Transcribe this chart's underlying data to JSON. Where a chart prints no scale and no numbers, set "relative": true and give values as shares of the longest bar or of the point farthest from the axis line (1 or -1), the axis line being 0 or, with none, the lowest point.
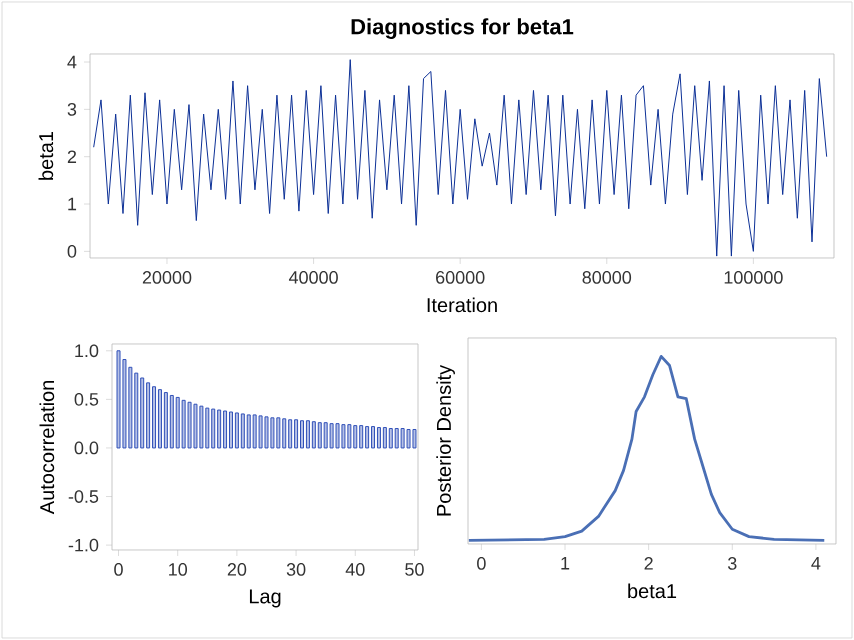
{
  "chart_data": [
    {
      "type": "line",
      "title": "Diagnostics for beta1",
      "xlabel": "Iteration",
      "ylabel": "beta1",
      "x": [
        10000,
        11000,
        12000,
        13000,
        14000,
        15000,
        16000,
        17000,
        18000,
        19000,
        20000,
        21000,
        22000,
        23000,
        24000,
        25000,
        26000,
        27000,
        28000,
        29000,
        30000,
        31000,
        32000,
        33000,
        34000,
        35000,
        36000,
        37000,
        38000,
        39000,
        40000,
        41000,
        42000,
        43000,
        44000,
        45000,
        46000,
        47000,
        48000,
        49000,
        50000,
        51000,
        52000,
        53000,
        54000,
        55000,
        56000,
        57000,
        58000,
        59000,
        60000,
        61000,
        62000,
        63000,
        64000,
        65000,
        66000,
        67000,
        68000,
        69000,
        70000,
        71000,
        72000,
        73000,
        74000,
        75000,
        76000,
        77000,
        78000,
        79000,
        80000,
        81000,
        82000,
        83000,
        84000,
        85000,
        86000,
        87000,
        88000,
        89000,
        90000,
        91000,
        92000,
        93000,
        94000,
        95000,
        96000,
        97000,
        98000,
        99000,
        100000,
        101000,
        102000,
        103000,
        104000,
        105000,
        106000,
        107000,
        108000,
        109000,
        110000
      ],
      "series": [
        {
          "color": "#0b2f96",
          "values": [
            2.2,
            3.2,
            1.0,
            2.9,
            0.8,
            3.3,
            0.55,
            3.35,
            1.2,
            3.2,
            1.0,
            3.0,
            1.3,
            3.1,
            0.65,
            2.9,
            1.3,
            3.0,
            1.1,
            3.6,
            1.0,
            3.5,
            1.3,
            3.0,
            0.8,
            3.3,
            1.1,
            3.3,
            0.85,
            3.4,
            1.2,
            3.5,
            0.8,
            3.3,
            1.0,
            4.05,
            1.1,
            3.4,
            0.7,
            3.2,
            1.3,
            3.3,
            1.0,
            3.5,
            0.55,
            3.65,
            3.8,
            1.2,
            3.4,
            1.0,
            3.0,
            1.1,
            2.8,
            1.8,
            2.5,
            1.4,
            3.3,
            1.0,
            3.2,
            1.2,
            3.4,
            1.3,
            3.3,
            0.75,
            3.3,
            1.0,
            3.0,
            0.9,
            3.2,
            1.0,
            3.4,
            1.2,
            3.3,
            0.9,
            3.3,
            3.5,
            1.4,
            3.0,
            1.0,
            2.9,
            3.75,
            1.2,
            3.5,
            1.5,
            3.6,
            -0.1,
            3.5,
            -0.1,
            3.4,
            1.0,
            0.0,
            3.3,
            1.0,
            3.5,
            1.2,
            3.2,
            0.7,
            3.4,
            0.2,
            3.65,
            2.0
          ]
        }
      ],
      "xlim": [
        9500,
        111000
      ],
      "ylim": [
        -0.14,
        4.17
      ],
      "xticks": [
        20000,
        40000,
        60000,
        80000,
        100000
      ],
      "yticks": [
        0,
        1,
        2,
        3,
        4
      ],
      "grid": false
    },
    {
      "type": "bar",
      "xlabel": "Lag",
      "ylabel": "Autocorrelation",
      "x": [
        0,
        1,
        2,
        3,
        4,
        5,
        6,
        7,
        8,
        9,
        10,
        11,
        12,
        13,
        14,
        15,
        16,
        17,
        18,
        19,
        20,
        21,
        22,
        23,
        24,
        25,
        26,
        27,
        28,
        29,
        30,
        31,
        32,
        33,
        34,
        35,
        36,
        37,
        38,
        39,
        40,
        41,
        42,
        43,
        44,
        45,
        46,
        47,
        48,
        49,
        50
      ],
      "series": [
        {
          "color": "#2f4fb8",
          "values": [
            1.0,
            0.91,
            0.83,
            0.77,
            0.72,
            0.67,
            0.63,
            0.6,
            0.57,
            0.54,
            0.52,
            0.49,
            0.47,
            0.45,
            0.43,
            0.41,
            0.4,
            0.39,
            0.38,
            0.37,
            0.36,
            0.35,
            0.34,
            0.34,
            0.33,
            0.32,
            0.31,
            0.31,
            0.3,
            0.29,
            0.29,
            0.28,
            0.28,
            0.27,
            0.26,
            0.26,
            0.25,
            0.25,
            0.24,
            0.24,
            0.23,
            0.23,
            0.22,
            0.22,
            0.21,
            0.21,
            0.2,
            0.2,
            0.2,
            0.19,
            0.19
          ]
        }
      ],
      "xlim": [
        -1.1,
        50.6
      ],
      "ylim": [
        -1.05,
        1.07
      ],
      "xticks": [
        0,
        10,
        20,
        30,
        40,
        50
      ],
      "yticks": [
        {
          "value": -1,
          "label": "-1.0"
        },
        {
          "value": -0.5,
          "label": "-0.5"
        },
        {
          "value": 0,
          "label": "0.0"
        },
        {
          "value": 0.5,
          "label": "0.5"
        },
        {
          "value": 1,
          "label": "1.0"
        }
      ],
      "grid": false
    },
    {
      "type": "line",
      "xlabel": "beta1",
      "ylabel": "Posterior Density",
      "relative": true,
      "x": [
        -0.15,
        0.75,
        1.0,
        1.2,
        1.4,
        1.6,
        1.7,
        1.8,
        1.85,
        1.95,
        2.05,
        2.15,
        2.25,
        2.35,
        2.45,
        2.55,
        2.65,
        2.75,
        2.85,
        3.0,
        3.2,
        3.5,
        4.1
      ],
      "series": [
        {
          "color": "#4a6fb5",
          "values": [
            0,
            0.005,
            0.02,
            0.05,
            0.13,
            0.27,
            0.38,
            0.55,
            0.7,
            0.78,
            0.9,
            1.0,
            0.95,
            0.78,
            0.77,
            0.55,
            0.4,
            0.25,
            0.15,
            0.06,
            0.02,
            0.005,
            0
          ]
        }
      ],
      "xlim": [
        -0.16,
        4.24
      ],
      "xticks": [
        0,
        1,
        2,
        3,
        4
      ],
      "grid": false
    }
  ]
}
